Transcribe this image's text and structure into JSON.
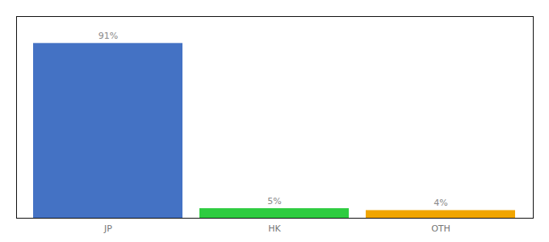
{
  "chart_data": {
    "type": "bar",
    "categories": [
      "JP",
      "HK",
      "OTH"
    ],
    "values": [
      91,
      5,
      4
    ],
    "value_labels": [
      "91%",
      "5%",
      "4%"
    ],
    "colors": [
      "#4472c4",
      "#2ecc40",
      "#f0a500"
    ],
    "ylim": [
      0,
      105
    ],
    "data_labels": true,
    "tick_labels": "x"
  }
}
